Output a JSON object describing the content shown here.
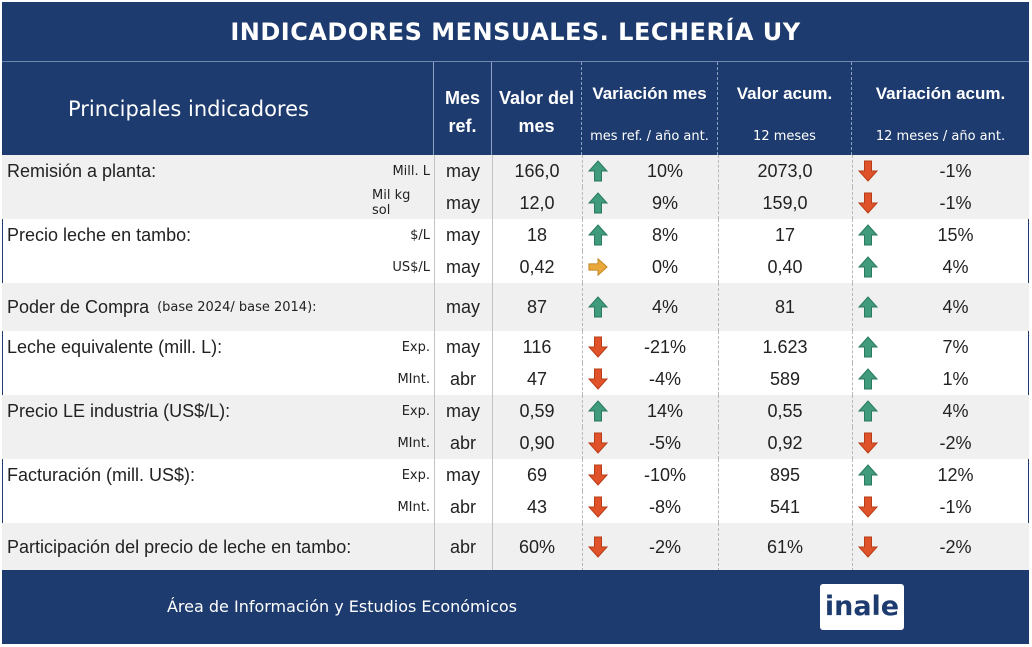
{
  "title": "INDICADORES MENSUALES. LECHERÍA UY",
  "header": {
    "main": "Principales indicadores",
    "mes_ref": [
      "Mes",
      "ref."
    ],
    "valor_mes": [
      "Valor del",
      "mes"
    ],
    "variacion_mes": "Variación mes",
    "variacion_mes_sub": "mes ref. / año ant.",
    "valor_acum": "Valor acum.",
    "valor_acum_sub": "12 meses",
    "variacion_acum": "Variación acum.",
    "variacion_acum_sub": "12 meses / año ant."
  },
  "rows": [
    {
      "label": "Remisión a planta:",
      "sub": "",
      "unit": "Mill. L",
      "mes": "may",
      "valor": "166,0",
      "var_dir": "up",
      "var": "10%",
      "acum": "2073,0",
      "varac_dir": "down",
      "varac": "-1%"
    },
    {
      "label": "",
      "sub": "",
      "unit": "Mil kg sol",
      "mes": "may",
      "valor": "12,0",
      "var_dir": "up",
      "var": "9%",
      "acum": "159,0",
      "varac_dir": "down",
      "varac": "-1%"
    },
    {
      "label": "Precio leche en tambo:",
      "sub": "",
      "unit": "$/L",
      "mes": "may",
      "valor": "18",
      "var_dir": "up",
      "var": "8%",
      "acum": "17",
      "varac_dir": "up",
      "varac": "15%"
    },
    {
      "label": "",
      "sub": "",
      "unit": "US$/L",
      "mes": "may",
      "valor": "0,42",
      "var_dir": "flat",
      "var": "0%",
      "acum": "0,40",
      "varac_dir": "up",
      "varac": "4%"
    },
    {
      "label": "Poder de Compra",
      "sub": "(base 2024/ base 2014):",
      "unit": "",
      "mes": "may",
      "valor": "87",
      "var_dir": "up",
      "var": "4%",
      "acum": "81",
      "varac_dir": "up",
      "varac": "4%"
    },
    {
      "label": "Leche equivalente (mill. L):",
      "sub": "",
      "unit": "Exp.",
      "mes": "may",
      "valor": "116",
      "var_dir": "down",
      "var": "-21%",
      "acum": "1.623",
      "varac_dir": "up",
      "varac": "7%"
    },
    {
      "label": "",
      "sub": "",
      "unit": "MInt.",
      "mes": "abr",
      "valor": "47",
      "var_dir": "down",
      "var": "-4%",
      "acum": "589",
      "varac_dir": "up",
      "varac": "1%"
    },
    {
      "label": "Precio LE industria (US$/L):",
      "sub": "",
      "unit": "Exp.",
      "mes": "may",
      "valor": "0,59",
      "var_dir": "up",
      "var": "14%",
      "acum": "0,55",
      "varac_dir": "up",
      "varac": "4%"
    },
    {
      "label": "",
      "sub": "",
      "unit": "MInt.",
      "mes": "abr",
      "valor": "0,90",
      "var_dir": "down",
      "var": "-5%",
      "acum": "0,92",
      "varac_dir": "down",
      "varac": "-2%"
    },
    {
      "label": "Facturación (mill. US$):",
      "sub": "",
      "unit": "Exp.",
      "mes": "may",
      "valor": "69",
      "var_dir": "down",
      "var": "-10%",
      "acum": "895",
      "varac_dir": "up",
      "varac": "12%"
    },
    {
      "label": "",
      "sub": "",
      "unit": "MInt.",
      "mes": "abr",
      "valor": "43",
      "var_dir": "down",
      "var": "-8%",
      "acum": "541",
      "varac_dir": "down",
      "varac": "-1%"
    },
    {
      "label": "Participación del precio de leche en tambo:",
      "sub": "",
      "unit": "",
      "mes": "abr",
      "valor": "60%",
      "var_dir": "down",
      "var": "-2%",
      "acum": "61%",
      "varac_dir": "down",
      "varac": "-2%"
    }
  ],
  "icons": {
    "up": "arrow-up-icon",
    "down": "arrow-down-icon",
    "flat": "arrow-right-icon"
  },
  "colors": {
    "navy": "#1d3b6e",
    "up": "#3f9b7c",
    "down": "#e0532a",
    "flat": "#e8a83a",
    "shade": "#f0f0f0"
  },
  "footer": {
    "text": "Área de Información y Estudios Económicos",
    "logo": "inale"
  }
}
